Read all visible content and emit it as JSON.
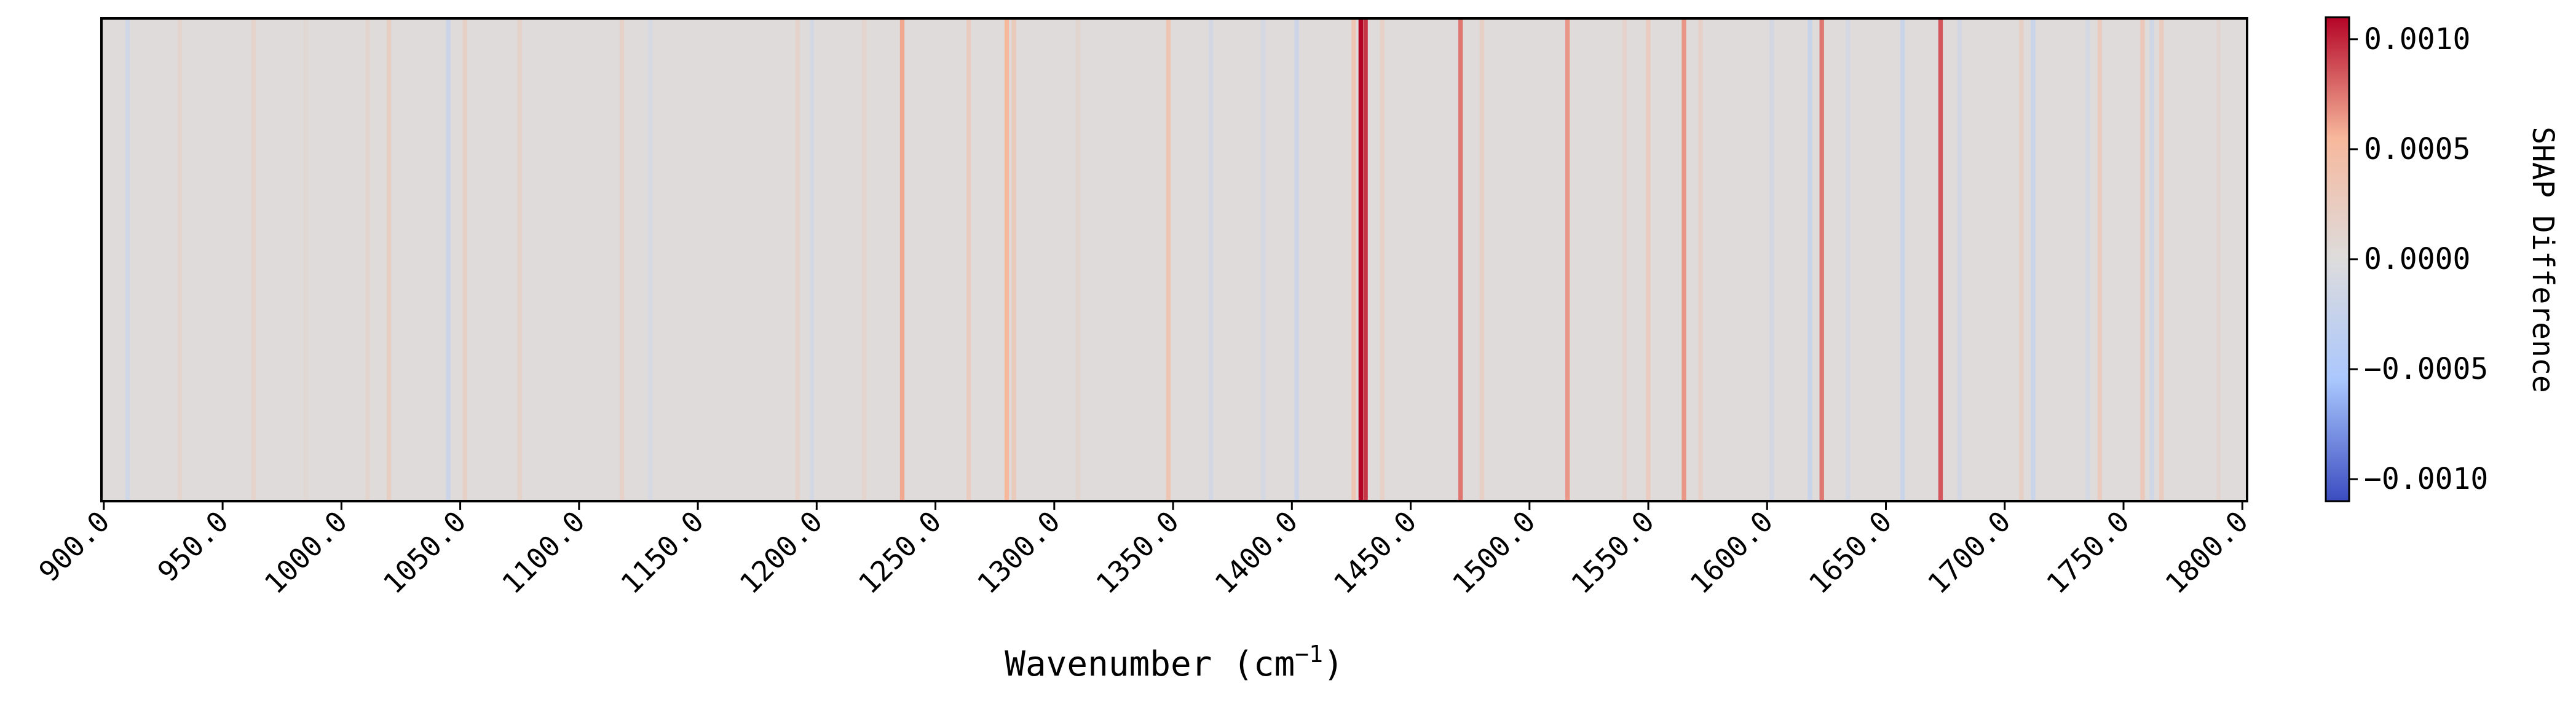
{
  "chart_data": {
    "type": "heatmap",
    "title": "",
    "xlabel": "Wavenumber (cm",
    "xlabel_superscript": "−1",
    "xlabel_close": ")",
    "ylabel": "",
    "xlim": [
      899,
      1802
    ],
    "xticks": [
      900,
      950,
      1000,
      1050,
      1100,
      1150,
      1200,
      1250,
      1300,
      1350,
      1400,
      1450,
      1500,
      1550,
      1600,
      1650,
      1700,
      1750,
      1800
    ],
    "xtick_labels": [
      "900.0",
      "950.0",
      "1000.0",
      "1050.0",
      "1100.0",
      "1150.0",
      "1200.0",
      "1250.0",
      "1300.0",
      "1350.0",
      "1400.0",
      "1450.0",
      "1500.0",
      "1550.0",
      "1600.0",
      "1650.0",
      "1700.0",
      "1750.0",
      "1800.0"
    ],
    "colormap": "coolwarm",
    "colormap_stops": [
      "#3b4cc0",
      "#aac7fd",
      "#dddcdc",
      "#f7b89c",
      "#b40426"
    ],
    "background_value": 2e-05,
    "vmin": -0.0011,
    "vmax": 0.0011,
    "colorbar": {
      "label": "SHAP Difference",
      "ticks": [
        0.001,
        0.0005,
        0.0,
        -0.0005,
        -0.001
      ],
      "tick_labels": [
        "0.0010",
        "0.0005",
        "0.0000",
        "−0.0005",
        "−0.0010"
      ]
    },
    "bands": [
      {
        "x": 910,
        "v": -0.00015
      },
      {
        "x": 932,
        "v": 0.00012
      },
      {
        "x": 963,
        "v": 0.00015
      },
      {
        "x": 985,
        "v": 8e-05
      },
      {
        "x": 1011,
        "v": 0.00012
      },
      {
        "x": 1020,
        "v": 0.00022
      },
      {
        "x": 1045,
        "v": -0.00018
      },
      {
        "x": 1052,
        "v": 0.0002
      },
      {
        "x": 1075,
        "v": 0.00016
      },
      {
        "x": 1118,
        "v": 0.00018
      },
      {
        "x": 1130,
        "v": -8e-05
      },
      {
        "x": 1192,
        "v": 0.00015
      },
      {
        "x": 1198,
        "v": -0.0001
      },
      {
        "x": 1220,
        "v": 0.00012
      },
      {
        "x": 1236,
        "v": 0.0006
      },
      {
        "x": 1264,
        "v": 0.00025
      },
      {
        "x": 1280,
        "v": 0.00055
      },
      {
        "x": 1283,
        "v": 0.00028
      },
      {
        "x": 1310,
        "v": 0.0001
      },
      {
        "x": 1348,
        "v": 0.00035
      },
      {
        "x": 1366,
        "v": -0.00012
      },
      {
        "x": 1388,
        "v": -0.0001
      },
      {
        "x": 1402,
        "v": -0.00018
      },
      {
        "x": 1426,
        "v": 0.00035
      },
      {
        "x": 1429,
        "v": 0.0011
      },
      {
        "x": 1431,
        "v": 0.00095
      },
      {
        "x": 1438,
        "v": 0.00018
      },
      {
        "x": 1471,
        "v": 0.00075
      },
      {
        "x": 1480,
        "v": 0.0002
      },
      {
        "x": 1516,
        "v": 0.00065
      },
      {
        "x": 1540,
        "v": 0.00015
      },
      {
        "x": 1550,
        "v": 0.00025
      },
      {
        "x": 1565,
        "v": 0.00065
      },
      {
        "x": 1572,
        "v": 0.00018
      },
      {
        "x": 1602,
        "v": -0.00012
      },
      {
        "x": 1618,
        "v": -0.00022
      },
      {
        "x": 1623,
        "v": 0.00075
      },
      {
        "x": 1634,
        "v": -0.0001
      },
      {
        "x": 1657,
        "v": -0.0002
      },
      {
        "x": 1673,
        "v": 0.00085
      },
      {
        "x": 1681,
        "v": -0.00012
      },
      {
        "x": 1707,
        "v": 0.0002
      },
      {
        "x": 1712,
        "v": -0.0002
      },
      {
        "x": 1735,
        "v": -0.0001
      },
      {
        "x": 1740,
        "v": 0.00025
      },
      {
        "x": 1758,
        "v": 0.0003
      },
      {
        "x": 1762,
        "v": -0.00015
      },
      {
        "x": 1766,
        "v": 0.00025
      },
      {
        "x": 1790,
        "v": 0.0001
      }
    ]
  }
}
